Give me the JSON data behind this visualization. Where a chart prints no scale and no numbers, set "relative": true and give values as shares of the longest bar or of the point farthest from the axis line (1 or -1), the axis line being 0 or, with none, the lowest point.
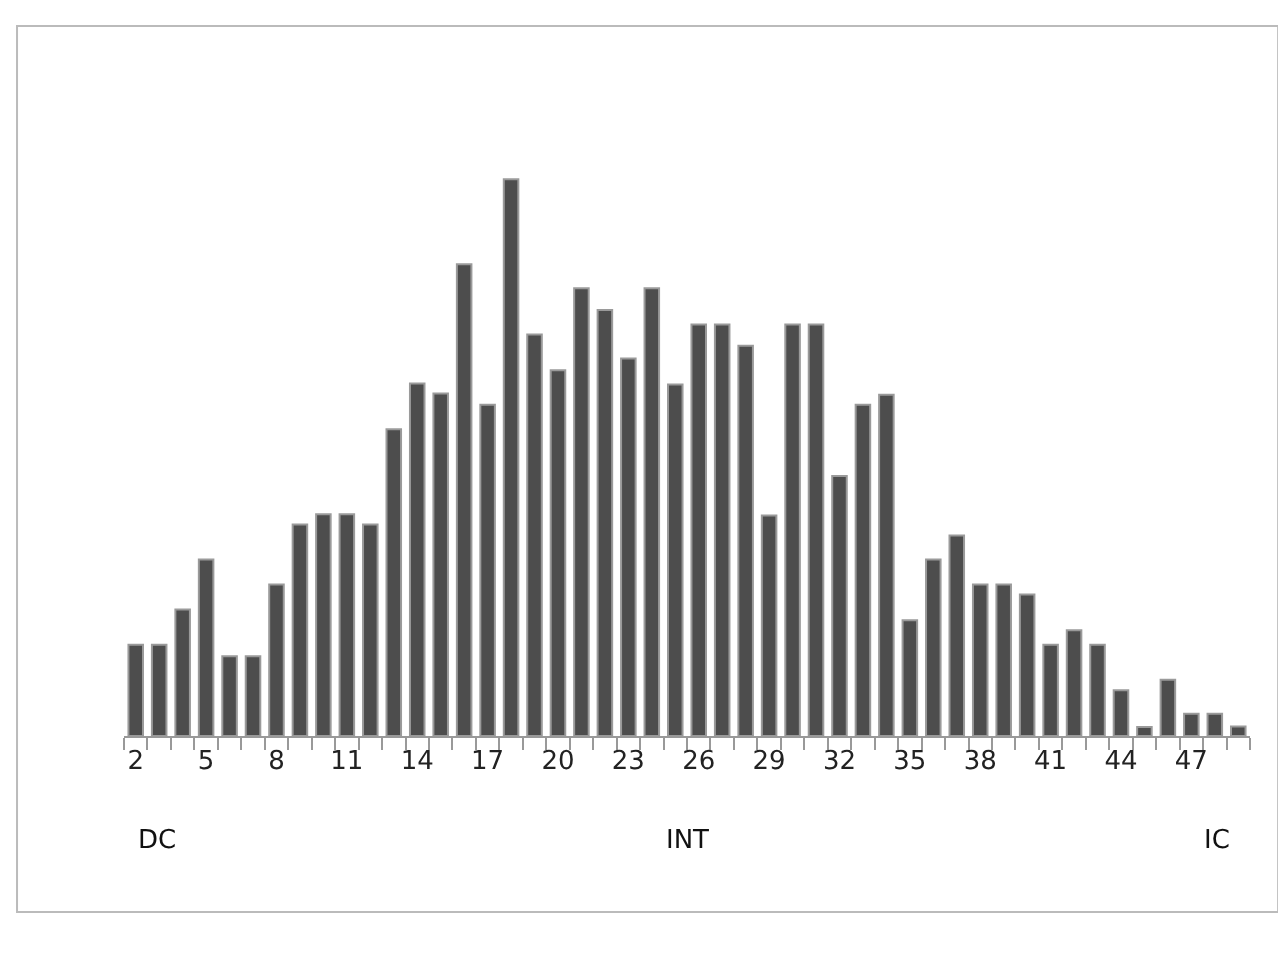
{
  "chart_data": {
    "type": "bar",
    "relative": true,
    "color": "#4d4d4d",
    "categories": [
      "2",
      null,
      null,
      "5",
      null,
      null,
      "8",
      null,
      null,
      "11",
      null,
      null,
      "14",
      null,
      null,
      "17",
      null,
      null,
      "20",
      null,
      null,
      "23",
      null,
      null,
      "26",
      null,
      null,
      "29",
      null,
      null,
      "32",
      null,
      null,
      "35",
      null,
      null,
      "38",
      null,
      null,
      "41",
      null,
      null,
      "44",
      null,
      null,
      "47",
      null,
      null
    ],
    "values": [
      0.164,
      0.164,
      0.227,
      0.317,
      0.143,
      0.143,
      0.272,
      0.38,
      0.398,
      0.398,
      0.38,
      0.551,
      0.633,
      0.615,
      0.847,
      0.595,
      1,
      0.721,
      0.657,
      0.804,
      0.765,
      0.678,
      0.804,
      0.631,
      0.739,
      0.739,
      0.701,
      0.396,
      0.739,
      0.739,
      0.467,
      0.595,
      0.613,
      0.208,
      0.317,
      0.36,
      0.272,
      0.272,
      0.254,
      0.164,
      0.19,
      0.164,
      0.082,
      0.016,
      0.101,
      0.04,
      0.04,
      0.017
    ],
    "annotations": [
      "DC",
      "INT",
      "IC"
    ]
  }
}
